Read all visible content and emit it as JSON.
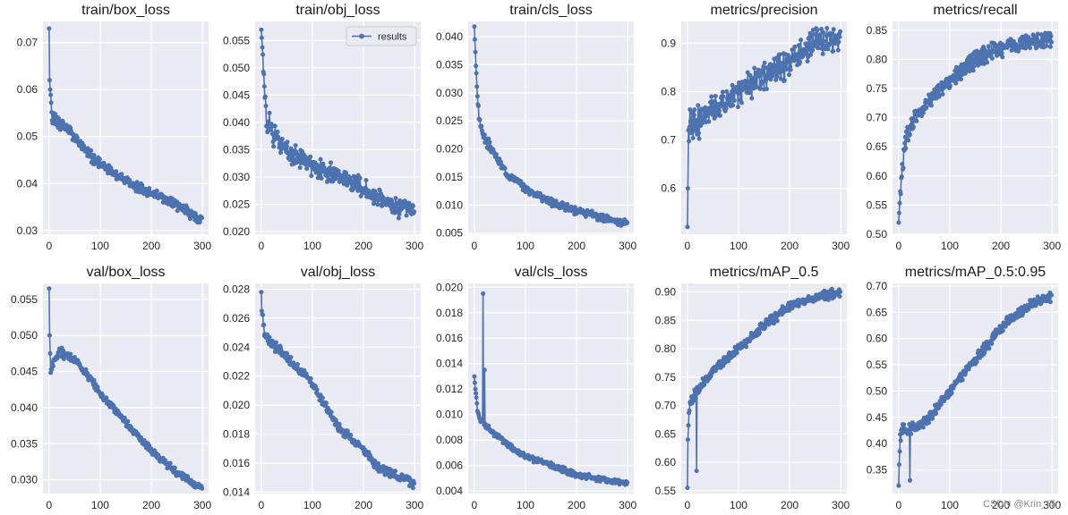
{
  "colors": {
    "line": "#4c72b0",
    "panel_bg": "#eaeaf2",
    "grid": "#ffffff"
  },
  "watermark": "CSDN @Krin_IT",
  "chart_data": [
    {
      "type": "line",
      "title": "train/box_loss",
      "series": [
        {
          "name": "results",
          "trend": [
            [
              0,
              0.073
            ],
            [
              1,
              0.062
            ],
            [
              3,
              0.058
            ],
            [
              6,
              0.054
            ],
            [
              15,
              0.053
            ],
            [
              30,
              0.052
            ],
            [
              50,
              0.05
            ],
            [
              80,
              0.046
            ],
            [
              100,
              0.044
            ],
            [
              130,
              0.042
            ],
            [
              160,
              0.04
            ],
            [
              200,
              0.038
            ],
            [
              240,
              0.036
            ],
            [
              270,
              0.034
            ],
            [
              299,
              0.032
            ]
          ],
          "noise": 0.0013,
          "seed": 1
        }
      ],
      "xlim": [
        -12,
        312
      ],
      "ylim": [
        0.0292,
        0.0745
      ],
      "xticks": [
        0,
        100,
        200,
        300
      ],
      "yticks": [
        0.03,
        0.04,
        0.05,
        0.06,
        0.07
      ],
      "ytick_labels": [
        "0.03",
        "0.04",
        "0.05",
        "0.06",
        "0.07"
      ]
    },
    {
      "type": "line",
      "title": "train/obj_loss",
      "legend": {
        "label": "results",
        "position": "top-right"
      },
      "series": [
        {
          "name": "results",
          "trend": [
            [
              0,
              0.057
            ],
            [
              1,
              0.0555
            ],
            [
              3,
              0.052
            ],
            [
              6,
              0.045
            ],
            [
              10,
              0.041
            ],
            [
              20,
              0.039
            ],
            [
              40,
              0.036
            ],
            [
              60,
              0.034
            ],
            [
              100,
              0.032
            ],
            [
              150,
              0.03
            ],
            [
              200,
              0.028
            ],
            [
              250,
              0.025
            ],
            [
              299,
              0.024
            ]
          ],
          "noise": 0.0022,
          "seed": 2
        }
      ],
      "xlim": [
        -12,
        312
      ],
      "ylim": [
        0.0195,
        0.0585
      ],
      "xticks": [
        0,
        100,
        200,
        300
      ],
      "yticks": [
        0.02,
        0.025,
        0.03,
        0.035,
        0.04,
        0.045,
        0.05,
        0.055
      ],
      "ytick_labels": [
        "0.020",
        "0.025",
        "0.030",
        "0.035",
        "0.040",
        "0.045",
        "0.050",
        "0.055"
      ]
    },
    {
      "type": "line",
      "title": "train/cls_loss",
      "series": [
        {
          "name": "results",
          "trend": [
            [
              0,
              0.0418
            ],
            [
              1,
              0.0395
            ],
            [
              3,
              0.035
            ],
            [
              6,
              0.029
            ],
            [
              10,
              0.025
            ],
            [
              20,
              0.022
            ],
            [
              40,
              0.019
            ],
            [
              60,
              0.016
            ],
            [
              100,
              0.013
            ],
            [
              150,
              0.0105
            ],
            [
              200,
              0.009
            ],
            [
              250,
              0.0077
            ],
            [
              299,
              0.0068
            ]
          ],
          "noise": 0.0008,
          "seed": 3
        }
      ],
      "xlim": [
        -12,
        312
      ],
      "ylim": [
        0.0048,
        0.0427
      ],
      "xticks": [
        0,
        100,
        200,
        300
      ],
      "yticks": [
        0.005,
        0.01,
        0.015,
        0.02,
        0.025,
        0.03,
        0.035,
        0.04
      ],
      "ytick_labels": [
        "0.005",
        "0.010",
        "0.015",
        "0.020",
        "0.025",
        "0.030",
        "0.035",
        "0.040"
      ]
    },
    {
      "type": "line",
      "title": "metrics/precision",
      "series": [
        {
          "name": "results",
          "trend": [
            [
              0,
              0.52
            ],
            [
              1,
              0.6
            ],
            [
              2,
              0.72
            ],
            [
              5,
              0.73
            ],
            [
              15,
              0.74
            ],
            [
              30,
              0.75
            ],
            [
              60,
              0.77
            ],
            [
              100,
              0.8
            ],
            [
              150,
              0.83
            ],
            [
              200,
              0.86
            ],
            [
              250,
              0.9
            ],
            [
              299,
              0.91
            ]
          ],
          "noise": 0.035,
          "seed": 4
        }
      ],
      "xlim": [
        -12,
        312
      ],
      "ylim": [
        0.505,
        0.945
      ],
      "xticks": [
        0,
        100,
        200,
        300
      ],
      "yticks": [
        0.6,
        0.7,
        0.8,
        0.9
      ],
      "ytick_labels": [
        "0.6",
        "0.7",
        "0.8",
        "0.9"
      ]
    },
    {
      "type": "line",
      "title": "metrics/recall",
      "series": [
        {
          "name": "results",
          "trend": [
            [
              0,
              0.52
            ],
            [
              3,
              0.57
            ],
            [
              8,
              0.62
            ],
            [
              15,
              0.66
            ],
            [
              30,
              0.7
            ],
            [
              60,
              0.73
            ],
            [
              100,
              0.76
            ],
            [
              150,
              0.8
            ],
            [
              200,
              0.82
            ],
            [
              250,
              0.83
            ],
            [
              299,
              0.835
            ]
          ],
          "noise": 0.018,
          "seed": 5
        }
      ],
      "xlim": [
        -12,
        312
      ],
      "ylim": [
        0.5,
        0.865
      ],
      "xticks": [
        0,
        100,
        200,
        300
      ],
      "yticks": [
        0.5,
        0.55,
        0.6,
        0.65,
        0.7,
        0.75,
        0.8,
        0.85
      ],
      "ytick_labels": [
        "0.50",
        "0.55",
        "0.60",
        "0.65",
        "0.70",
        "0.75",
        "0.80",
        "0.85"
      ]
    },
    {
      "type": "line",
      "title": "val/box_loss",
      "series": [
        {
          "name": "results",
          "trend": [
            [
              0,
              0.0565
            ],
            [
              1,
              0.05
            ],
            [
              3,
              0.045
            ],
            [
              8,
              0.046
            ],
            [
              20,
              0.048
            ],
            [
              40,
              0.047
            ],
            [
              60,
              0.046
            ],
            [
              100,
              0.042
            ],
            [
              150,
              0.038
            ],
            [
              200,
              0.034
            ],
            [
              250,
              0.031
            ],
            [
              299,
              0.0288
            ]
          ],
          "noise": 0.0006,
          "seed": 6
        }
      ],
      "xlim": [
        -12,
        312
      ],
      "ylim": [
        0.0281,
        0.0572
      ],
      "xticks": [
        0,
        100,
        200,
        300
      ],
      "yticks": [
        0.03,
        0.035,
        0.04,
        0.045,
        0.05,
        0.055
      ],
      "ytick_labels": [
        "0.030",
        "0.035",
        "0.040",
        "0.045",
        "0.050",
        "0.055"
      ]
    },
    {
      "type": "line",
      "title": "val/obj_loss",
      "series": [
        {
          "name": "results",
          "trend": [
            [
              0,
              0.0278
            ],
            [
              1,
              0.0265
            ],
            [
              3,
              0.026
            ],
            [
              6,
              0.025
            ],
            [
              15,
              0.0245
            ],
            [
              30,
              0.024
            ],
            [
              60,
              0.023
            ],
            [
              100,
              0.0215
            ],
            [
              150,
              0.0185
            ],
            [
              200,
              0.017
            ],
            [
              220,
              0.016
            ],
            [
              250,
              0.0153
            ],
            [
              280,
              0.015
            ],
            [
              299,
              0.0145
            ]
          ],
          "noise": 0.00035,
          "seed": 7
        }
      ],
      "xlim": [
        -12,
        312
      ],
      "ylim": [
        0.0139,
        0.0284
      ],
      "xticks": [
        0,
        100,
        200,
        300
      ],
      "yticks": [
        0.014,
        0.016,
        0.018,
        0.02,
        0.022,
        0.024,
        0.026,
        0.028
      ],
      "ytick_labels": [
        "0.014",
        "0.016",
        "0.018",
        "0.020",
        "0.022",
        "0.024",
        "0.026",
        "0.028"
      ]
    },
    {
      "type": "line",
      "title": "val/cls_loss",
      "series": [
        {
          "name": "results",
          "trend": [
            [
              0,
              0.013
            ],
            [
              2,
              0.012
            ],
            [
              6,
              0.0105
            ],
            [
              12,
              0.0095
            ],
            [
              30,
              0.0088
            ],
            [
              60,
              0.0078
            ],
            [
              100,
              0.0067
            ],
            [
              150,
              0.006
            ],
            [
              200,
              0.0053
            ],
            [
              250,
              0.0049
            ],
            [
              299,
              0.0046
            ]
          ],
          "noise": 0.00025,
          "seed": 8,
          "spikes": [
            [
              17,
              0.0195
            ],
            [
              20,
              0.0135
            ]
          ]
        }
      ],
      "xlim": [
        -12,
        312
      ],
      "ylim": [
        0.0038,
        0.0203
      ],
      "xticks": [
        0,
        100,
        200,
        300
      ],
      "yticks": [
        0.004,
        0.006,
        0.008,
        0.01,
        0.012,
        0.014,
        0.016,
        0.018,
        0.02
      ],
      "ytick_labels": [
        "0.004",
        "0.006",
        "0.008",
        "0.010",
        "0.012",
        "0.014",
        "0.016",
        "0.018",
        "0.020"
      ]
    },
    {
      "type": "line",
      "title": "metrics/mAP_0.5",
      "series": [
        {
          "name": "results",
          "trend": [
            [
              0,
              0.555
            ],
            [
              1,
              0.64
            ],
            [
              3,
              0.69
            ],
            [
              6,
              0.7
            ],
            [
              15,
              0.72
            ],
            [
              30,
              0.74
            ],
            [
              60,
              0.77
            ],
            [
              100,
              0.8
            ],
            [
              150,
              0.84
            ],
            [
              200,
              0.875
            ],
            [
              250,
              0.89
            ],
            [
              299,
              0.9
            ]
          ],
          "noise": 0.01,
          "seed": 9,
          "spikes": [
            [
              18,
              0.585
            ]
          ]
        }
      ],
      "xlim": [
        -12,
        312
      ],
      "ylim": [
        0.545,
        0.915
      ],
      "xticks": [
        0,
        100,
        200,
        300
      ],
      "yticks": [
        0.55,
        0.6,
        0.65,
        0.7,
        0.75,
        0.8,
        0.85,
        0.9
      ],
      "ytick_labels": [
        "0.55",
        "0.60",
        "0.65",
        "0.70",
        "0.75",
        "0.80",
        "0.85",
        "0.90"
      ]
    },
    {
      "type": "line",
      "title": "metrics/mAP_0.5:0.95",
      "series": [
        {
          "name": "results",
          "trend": [
            [
              0,
              0.32
            ],
            [
              1,
              0.36
            ],
            [
              3,
              0.41
            ],
            [
              8,
              0.44
            ],
            [
              15,
              0.42
            ],
            [
              30,
              0.43
            ],
            [
              60,
              0.45
            ],
            [
              100,
              0.5
            ],
            [
              150,
              0.56
            ],
            [
              200,
              0.62
            ],
            [
              250,
              0.66
            ],
            [
              299,
              0.68
            ]
          ],
          "noise": 0.012,
          "seed": 10,
          "spikes": [
            [
              22,
              0.33
            ]
          ]
        }
      ],
      "xlim": [
        -12,
        312
      ],
      "ylim": [
        0.305,
        0.705
      ],
      "xticks": [
        0,
        100,
        200,
        300
      ],
      "yticks": [
        0.35,
        0.4,
        0.45,
        0.5,
        0.55,
        0.6,
        0.65,
        0.7
      ],
      "ytick_labels": [
        "0.35",
        "0.40",
        "0.45",
        "0.50",
        "0.55",
        "0.60",
        "0.65",
        "0.70"
      ]
    }
  ]
}
